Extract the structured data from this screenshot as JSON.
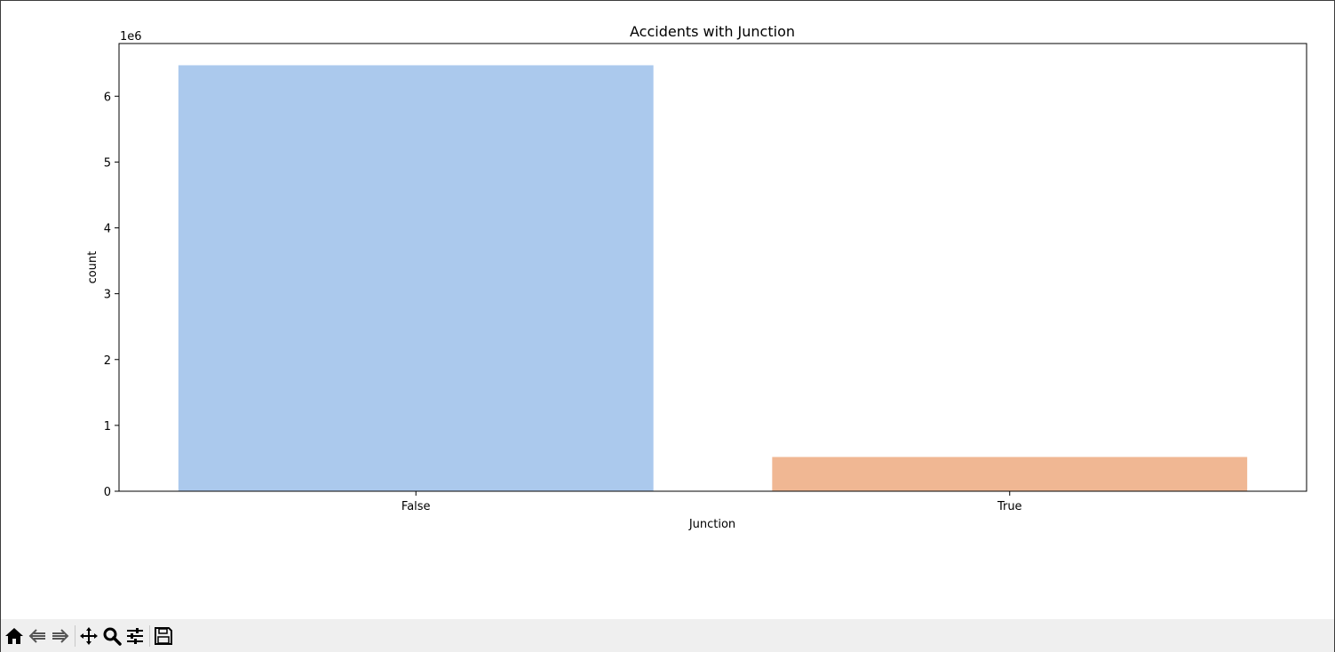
{
  "chart_data": {
    "type": "bar",
    "title": "Accidents with Junction",
    "xlabel": "Junction",
    "ylabel": "count",
    "scale_label": "1e6",
    "categories": [
      "False",
      "True"
    ],
    "values": [
      6470000,
      520000
    ],
    "colors": [
      "#abc9ed",
      "#f0b793"
    ],
    "ylim": [
      0,
      6800000
    ],
    "yticks": [
      0,
      1000000,
      2000000,
      3000000,
      4000000,
      5000000,
      6000000
    ],
    "ytick_labels": [
      "0",
      "1",
      "2",
      "3",
      "4",
      "5",
      "6"
    ],
    "grid": false,
    "legend": "none"
  },
  "toolbar": {
    "buttons": [
      {
        "name": "home-icon",
        "icon": "home"
      },
      {
        "name": "back-icon",
        "icon": "back"
      },
      {
        "name": "forward-icon",
        "icon": "forward"
      },
      {
        "name": "pan-icon",
        "icon": "pan"
      },
      {
        "name": "zoom-icon",
        "icon": "zoom"
      },
      {
        "name": "configure-subplots-icon",
        "icon": "subplots"
      },
      {
        "name": "save-icon",
        "icon": "save"
      }
    ]
  }
}
